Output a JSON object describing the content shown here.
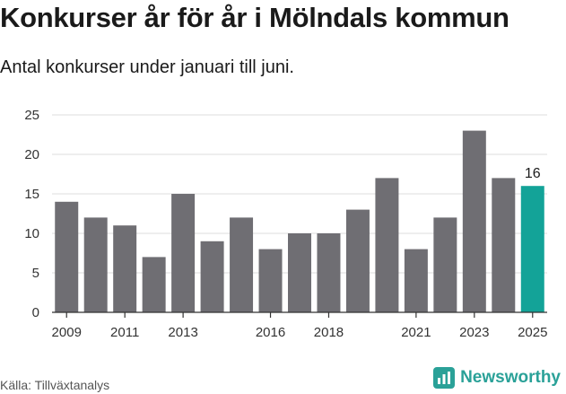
{
  "title": "Konkurser år för år i Mölndals kommun",
  "subtitle": "Antal konkurser under januari till juni.",
  "source": "Källa: Tillväxtanalys",
  "brand": {
    "name": "Newsworthy",
    "color": "#2aa198",
    "icon": "newsworthy-logo-icon"
  },
  "chart_data": {
    "type": "bar",
    "categories": [
      "2009",
      "2010",
      "2011",
      "2012",
      "2013",
      "2014",
      "2015",
      "2016",
      "2017",
      "2018",
      "2019",
      "2020",
      "2021",
      "2022",
      "2023",
      "2024",
      "2025"
    ],
    "x_tick_labels": [
      "2009",
      "2011",
      "2013",
      "2016",
      "2018",
      "2021",
      "2023",
      "2025"
    ],
    "values": [
      14,
      12,
      11,
      7,
      15,
      9,
      12,
      8,
      10,
      10,
      13,
      17,
      8,
      12,
      23,
      17,
      16
    ],
    "ylim": [
      0,
      25
    ],
    "yticks": [
      0,
      5,
      10,
      15,
      20,
      25
    ],
    "grid": true,
    "colors": {
      "bar": "#6f6e73",
      "highlight": "#13a398",
      "grid": "#dcdcdc"
    },
    "highlight_category": "2025",
    "data_labels": [
      {
        "category": "2025",
        "text": "16"
      }
    ]
  }
}
